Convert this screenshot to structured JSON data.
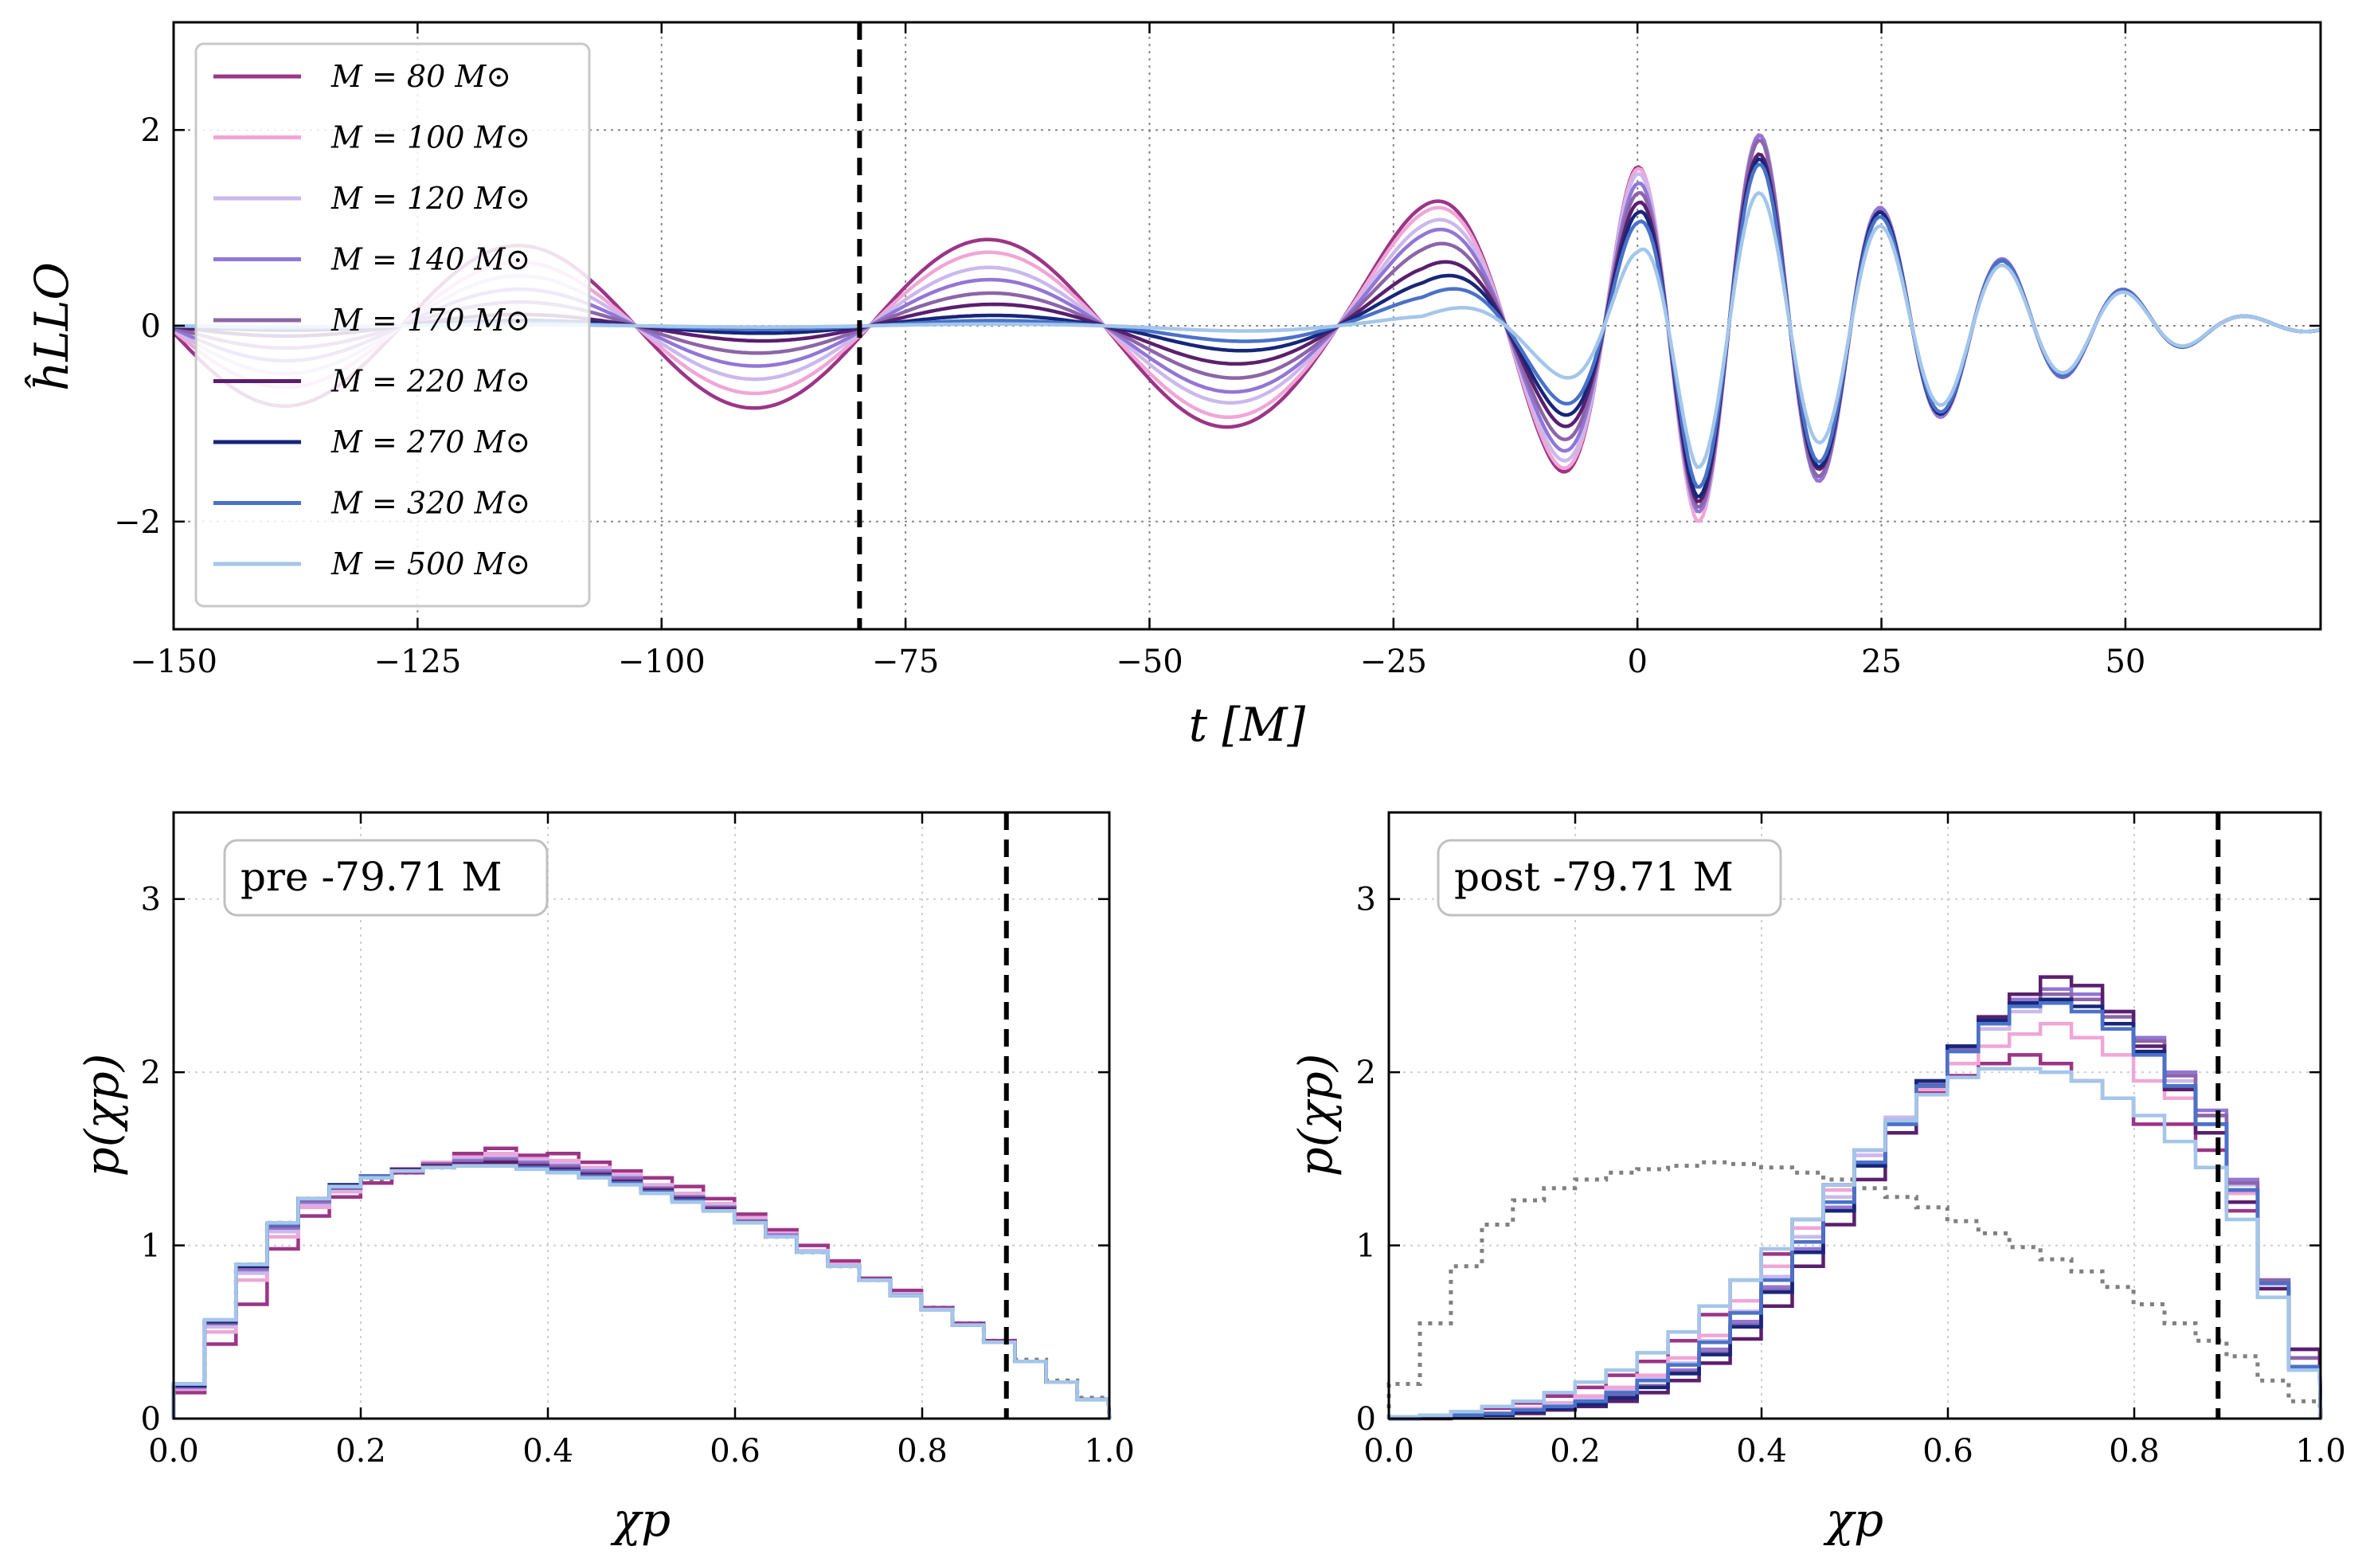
{
  "chart_data": [
    {
      "type": "line",
      "xlabel": "t [M]",
      "ylabel": "ĥLLO",
      "xlim": [
        -150,
        70
      ],
      "ylim": [
        -3.1,
        3.1
      ],
      "xticks": [
        -150,
        -125,
        -100,
        -75,
        -50,
        -25,
        0,
        25,
        50
      ],
      "xtick_labels": [
        "−150",
        "−125",
        "−100",
        "−75",
        "−50",
        "−25",
        "0",
        "25",
        "50"
      ],
      "yticks": [
        -2,
        0,
        2
      ],
      "ytick_labels": [
        "−2",
        "0",
        "2"
      ],
      "grid": true,
      "legend_position": "upper-left",
      "vline": -79.71,
      "series": [
        {
          "name": "M = 80 M⊙",
          "color": "#9c3587",
          "amp": [
            0.82,
            0.82,
            0.9,
            1.25,
            1.62,
            1.85,
            1.95,
            1.22,
            0.7,
            0.12
          ]
        },
        {
          "name": "M = 100 M⊙",
          "color": "#f0a6d6",
          "amp": [
            0.62,
            0.66,
            0.78,
            1.18,
            1.6,
            2.0,
            1.95,
            1.2,
            0.7,
            0.12
          ]
        },
        {
          "name": "M = 120 M⊙",
          "color": "#cbb8ee",
          "amp": [
            0.48,
            0.52,
            0.62,
            1.05,
            1.55,
            1.9,
            1.95,
            1.2,
            0.7,
            0.12
          ]
        },
        {
          "name": "M = 140 M⊙",
          "color": "#9276d6",
          "amp": [
            0.35,
            0.38,
            0.5,
            0.95,
            1.45,
            1.9,
            1.95,
            1.25,
            0.72,
            0.12
          ]
        },
        {
          "name": "M = 170 M⊙",
          "color": "#8c65a8",
          "amp": [
            0.22,
            0.25,
            0.36,
            0.8,
            1.35,
            1.85,
            1.9,
            1.2,
            0.7,
            0.12
          ]
        },
        {
          "name": "M = 220 M⊙",
          "color": "#5a1f6e",
          "amp": [
            0.1,
            0.12,
            0.25,
            0.6,
            1.25,
            1.8,
            1.75,
            1.2,
            0.7,
            0.12
          ]
        },
        {
          "name": "M = 270 M⊙",
          "color": "#16277a",
          "amp": [
            0.04,
            0.06,
            0.12,
            0.45,
            1.15,
            1.75,
            1.7,
            1.2,
            0.7,
            0.12
          ]
        },
        {
          "name": "M = 320 M⊙",
          "color": "#4a72c8",
          "amp": [
            0.02,
            0.03,
            0.06,
            0.3,
            1.05,
            1.65,
            1.65,
            1.15,
            0.7,
            0.12
          ]
        },
        {
          "name": "M = 500 M⊙",
          "color": "#a4c6ea",
          "amp": [
            0.01,
            0.01,
            0.02,
            0.1,
            0.75,
            1.45,
            1.35,
            1.05,
            0.65,
            0.12
          ]
        }
      ]
    },
    {
      "type": "histogram",
      "label": "pre -79.71 M",
      "xlabel": "χp",
      "ylabel": "p(χp)",
      "xlim": [
        0,
        1
      ],
      "ylim": [
        0,
        3.5
      ],
      "xticks": [
        0.0,
        0.2,
        0.4,
        0.6,
        0.8,
        1.0
      ],
      "xtick_labels": [
        "0.0",
        "0.2",
        "0.4",
        "0.6",
        "0.8",
        "1.0"
      ],
      "yticks": [
        0,
        1,
        2,
        3
      ],
      "ytick_labels": [
        "0",
        "1",
        "2",
        "3"
      ],
      "vline": 0.89,
      "bin_width": 0.0333,
      "prior": [
        0.19,
        0.56,
        0.89,
        1.13,
        1.27,
        1.33,
        1.38,
        1.42,
        1.45,
        1.47,
        1.48,
        1.47,
        1.45,
        1.42,
        1.38,
        1.33,
        1.28,
        1.22,
        1.14,
        1.05,
        0.96,
        0.88,
        0.8,
        0.72,
        0.64,
        0.55,
        0.45,
        0.34,
        0.22,
        0.12
      ],
      "series": [
        {
          "color": "#9c3587",
          "values": [
            0.15,
            0.43,
            0.66,
            0.98,
            1.17,
            1.28,
            1.36,
            1.42,
            1.48,
            1.53,
            1.56,
            1.52,
            1.53,
            1.48,
            1.43,
            1.39,
            1.34,
            1.27,
            1.18,
            1.09,
            1.0,
            0.91,
            0.81,
            0.74,
            0.64,
            0.55,
            0.45,
            0.33,
            0.21,
            0.11
          ]
        },
        {
          "color": "#f0a6d6",
          "values": [
            0.17,
            0.5,
            0.8,
            1.05,
            1.22,
            1.31,
            1.39,
            1.44,
            1.48,
            1.51,
            1.53,
            1.5,
            1.49,
            1.45,
            1.41,
            1.35,
            1.3,
            1.24,
            1.16,
            1.07,
            0.97,
            0.89,
            0.8,
            0.72,
            0.63,
            0.54,
            0.44,
            0.33,
            0.21,
            0.11
          ]
        },
        {
          "color": "#cbb8ee",
          "values": [
            0.18,
            0.53,
            0.84,
            1.08,
            1.24,
            1.32,
            1.39,
            1.44,
            1.47,
            1.5,
            1.51,
            1.49,
            1.47,
            1.44,
            1.4,
            1.34,
            1.29,
            1.23,
            1.15,
            1.06,
            0.97,
            0.88,
            0.8,
            0.72,
            0.63,
            0.54,
            0.44,
            0.33,
            0.21,
            0.11
          ]
        },
        {
          "color": "#9276d6",
          "values": [
            0.18,
            0.55,
            0.86,
            1.1,
            1.25,
            1.33,
            1.4,
            1.44,
            1.47,
            1.49,
            1.5,
            1.48,
            1.46,
            1.43,
            1.39,
            1.33,
            1.28,
            1.22,
            1.14,
            1.06,
            0.96,
            0.88,
            0.8,
            0.71,
            0.63,
            0.54,
            0.44,
            0.33,
            0.21,
            0.11
          ]
        },
        {
          "color": "#8c65a8",
          "values": [
            0.19,
            0.55,
            0.87,
            1.11,
            1.26,
            1.33,
            1.4,
            1.44,
            1.47,
            1.48,
            1.49,
            1.47,
            1.45,
            1.42,
            1.38,
            1.33,
            1.28,
            1.22,
            1.14,
            1.05,
            0.96,
            0.88,
            0.8,
            0.71,
            0.63,
            0.54,
            0.44,
            0.33,
            0.21,
            0.11
          ]
        },
        {
          "color": "#5a1f6e",
          "values": [
            0.19,
            0.56,
            0.88,
            1.12,
            1.27,
            1.34,
            1.4,
            1.44,
            1.46,
            1.47,
            1.48,
            1.46,
            1.44,
            1.41,
            1.37,
            1.32,
            1.27,
            1.21,
            1.13,
            1.05,
            0.96,
            0.88,
            0.8,
            0.71,
            0.63,
            0.54,
            0.44,
            0.33,
            0.21,
            0.11
          ]
        },
        {
          "color": "#16277a",
          "values": [
            0.19,
            0.56,
            0.88,
            1.12,
            1.27,
            1.35,
            1.4,
            1.43,
            1.45,
            1.46,
            1.46,
            1.45,
            1.43,
            1.4,
            1.36,
            1.31,
            1.26,
            1.2,
            1.13,
            1.05,
            0.96,
            0.88,
            0.8,
            0.71,
            0.63,
            0.54,
            0.44,
            0.33,
            0.21,
            0.11
          ]
        },
        {
          "color": "#4a72c8",
          "values": [
            0.2,
            0.57,
            0.89,
            1.12,
            1.27,
            1.34,
            1.4,
            1.43,
            1.45,
            1.46,
            1.46,
            1.45,
            1.43,
            1.4,
            1.36,
            1.31,
            1.26,
            1.2,
            1.13,
            1.05,
            0.96,
            0.88,
            0.8,
            0.71,
            0.63,
            0.54,
            0.44,
            0.33,
            0.21,
            0.11
          ]
        },
        {
          "color": "#a4c6ea",
          "values": [
            0.2,
            0.57,
            0.89,
            1.13,
            1.27,
            1.34,
            1.39,
            1.43,
            1.45,
            1.46,
            1.46,
            1.44,
            1.42,
            1.39,
            1.35,
            1.3,
            1.25,
            1.2,
            1.13,
            1.05,
            0.96,
            0.88,
            0.8,
            0.71,
            0.63,
            0.54,
            0.44,
            0.33,
            0.21,
            0.11
          ]
        }
      ]
    },
    {
      "type": "histogram",
      "label": "post -79.71 M",
      "xlabel": "χp",
      "ylabel": "p(χp)",
      "xlim": [
        0,
        1
      ],
      "ylim": [
        0,
        3.5
      ],
      "xticks": [
        0.0,
        0.2,
        0.4,
        0.6,
        0.8,
        1.0
      ],
      "xtick_labels": [
        "0.0",
        "0.2",
        "0.4",
        "0.6",
        "0.8",
        "1.0"
      ],
      "yticks": [
        0,
        1,
        2,
        3
      ],
      "ytick_labels": [
        "0",
        "1",
        "2",
        "3"
      ],
      "vline": 0.89,
      "bin_width": 0.0333,
      "prior": [
        0.2,
        0.55,
        0.88,
        1.12,
        1.26,
        1.33,
        1.38,
        1.42,
        1.44,
        1.46,
        1.48,
        1.47,
        1.45,
        1.42,
        1.38,
        1.33,
        1.28,
        1.22,
        1.14,
        1.07,
        0.99,
        0.92,
        0.85,
        0.76,
        0.66,
        0.55,
        0.45,
        0.36,
        0.22,
        0.1
      ],
      "series": [
        {
          "color": "#9c3587",
          "values": [
            0.01,
            0.02,
            0.04,
            0.06,
            0.09,
            0.13,
            0.18,
            0.25,
            0.33,
            0.45,
            0.6,
            0.8,
            0.95,
            1.15,
            1.35,
            1.55,
            1.72,
            1.88,
            1.98,
            2.05,
            2.1,
            2.05,
            1.95,
            1.85,
            1.7,
            1.7,
            1.55,
            1.2,
            0.75,
            0.4
          ]
        },
        {
          "color": "#f0a6d6",
          "values": [
            0.0,
            0.01,
            0.02,
            0.03,
            0.06,
            0.09,
            0.13,
            0.18,
            0.25,
            0.35,
            0.48,
            0.68,
            0.88,
            1.1,
            1.32,
            1.52,
            1.72,
            1.9,
            2.05,
            2.15,
            2.22,
            2.28,
            2.2,
            2.1,
            1.95,
            1.85,
            1.7,
            1.3,
            0.8,
            0.35
          ]
        },
        {
          "color": "#cbb8ee",
          "values": [
            0.0,
            0.01,
            0.02,
            0.03,
            0.05,
            0.08,
            0.11,
            0.16,
            0.23,
            0.32,
            0.45,
            0.62,
            0.82,
            1.05,
            1.28,
            1.52,
            1.74,
            1.95,
            2.12,
            2.25,
            2.35,
            2.4,
            2.35,
            2.25,
            2.1,
            1.95,
            1.75,
            1.35,
            0.8,
            0.35
          ]
        },
        {
          "color": "#9276d6",
          "values": [
            0.0,
            0.01,
            0.01,
            0.02,
            0.04,
            0.06,
            0.09,
            0.13,
            0.19,
            0.28,
            0.4,
            0.56,
            0.76,
            0.98,
            1.22,
            1.48,
            1.72,
            1.95,
            2.15,
            2.3,
            2.42,
            2.48,
            2.45,
            2.35,
            2.2,
            2.0,
            1.78,
            1.38,
            0.8,
            0.35
          ]
        },
        {
          "color": "#8c65a8",
          "values": [
            0.0,
            0.01,
            0.01,
            0.02,
            0.04,
            0.06,
            0.09,
            0.13,
            0.19,
            0.27,
            0.38,
            0.54,
            0.74,
            0.96,
            1.2,
            1.46,
            1.7,
            1.93,
            2.13,
            2.28,
            2.4,
            2.45,
            2.42,
            2.32,
            2.18,
            1.98,
            1.75,
            1.36,
            0.8,
            0.35
          ]
        },
        {
          "color": "#5a1f6e",
          "values": [
            0.0,
            0.0,
            0.01,
            0.02,
            0.03,
            0.05,
            0.07,
            0.1,
            0.15,
            0.22,
            0.32,
            0.46,
            0.65,
            0.88,
            1.12,
            1.38,
            1.65,
            1.92,
            2.15,
            2.32,
            2.45,
            2.55,
            2.5,
            2.35,
            2.15,
            1.9,
            1.65,
            1.25,
            0.75,
            0.4
          ]
        },
        {
          "color": "#16277a",
          "values": [
            0.0,
            0.01,
            0.01,
            0.02,
            0.04,
            0.06,
            0.08,
            0.12,
            0.18,
            0.26,
            0.37,
            0.53,
            0.73,
            0.96,
            1.2,
            1.46,
            1.7,
            1.95,
            2.15,
            2.3,
            2.4,
            2.42,
            2.38,
            2.28,
            2.12,
            1.92,
            1.7,
            1.32,
            0.78,
            0.3
          ]
        },
        {
          "color": "#4a72c8",
          "values": [
            0.0,
            0.01,
            0.02,
            0.03,
            0.05,
            0.07,
            0.1,
            0.15,
            0.22,
            0.31,
            0.44,
            0.61,
            0.8,
            1.02,
            1.25,
            1.48,
            1.7,
            1.92,
            2.12,
            2.28,
            2.38,
            2.4,
            2.35,
            2.25,
            2.1,
            1.92,
            1.7,
            1.32,
            0.78,
            0.3
          ]
        },
        {
          "color": "#a4c6ea",
          "values": [
            0.01,
            0.02,
            0.04,
            0.07,
            0.1,
            0.15,
            0.21,
            0.28,
            0.38,
            0.5,
            0.65,
            0.8,
            0.98,
            1.15,
            1.35,
            1.55,
            1.72,
            1.87,
            1.97,
            2.02,
            2.02,
            2.0,
            1.95,
            1.85,
            1.75,
            1.6,
            1.45,
            1.15,
            0.7,
            0.28
          ]
        }
      ]
    }
  ]
}
